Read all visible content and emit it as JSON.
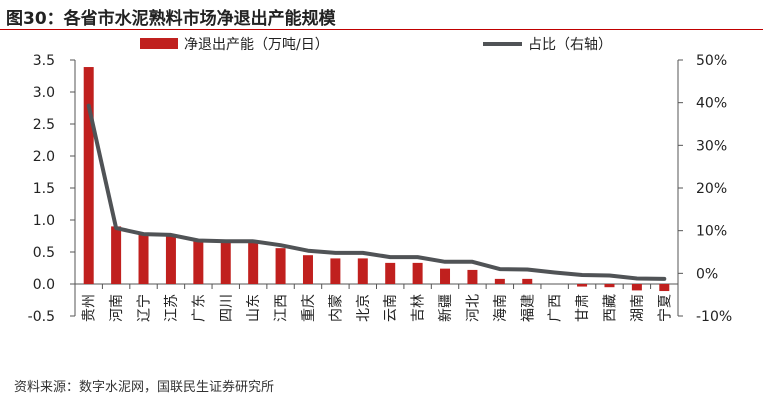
{
  "title": "图30：各省市水泥熟料市场净退出产能规模",
  "source": "资料来源：数字水泥网，国联民生证券研究所",
  "colors": {
    "bar": "#c0201e",
    "line": "#505356",
    "axis": "#555555"
  },
  "chart_data": {
    "type": "bar+line",
    "categories": [
      "贵州",
      "河南",
      "辽宁",
      "江苏",
      "广东",
      "四川",
      "山东",
      "江西",
      "重庆",
      "内蒙",
      "北京",
      "云南",
      "吉林",
      "新疆",
      "河北",
      "海南",
      "福建",
      "广西",
      "甘肃",
      "西藏",
      "湖南",
      "宁夏"
    ],
    "series": [
      {
        "name": "净退出产能（万吨/日）",
        "type": "bar",
        "axis": "left",
        "values": [
          3.39,
          0.9,
          0.77,
          0.75,
          0.67,
          0.67,
          0.65,
          0.56,
          0.45,
          0.4,
          0.4,
          0.33,
          0.33,
          0.24,
          0.22,
          0.08,
          0.08,
          0.0,
          -0.04,
          -0.05,
          -0.1,
          -0.11
        ]
      },
      {
        "name": "占比（右轴）",
        "type": "line",
        "axis": "right",
        "values": [
          39.3,
          10.6,
          9.2,
          9.0,
          7.7,
          7.5,
          7.5,
          6.6,
          5.3,
          4.8,
          4.8,
          3.8,
          3.8,
          2.7,
          2.7,
          1.0,
          0.9,
          0.2,
          -0.4,
          -0.5,
          -1.2,
          -1.3
        ]
      }
    ],
    "left_axis": {
      "ylim": [
        -0.5,
        3.5
      ],
      "ticks": [
        "-0.5",
        "0.0",
        "0.5",
        "1.0",
        "1.5",
        "2.0",
        "2.5",
        "3.0",
        "3.5"
      ]
    },
    "right_axis": {
      "ylim": [
        -10,
        50
      ],
      "unit": "%",
      "ticks": [
        "-10%",
        "0%",
        "10%",
        "20%",
        "30%",
        "40%",
        "50%"
      ]
    },
    "grid": false,
    "legend": "top"
  }
}
